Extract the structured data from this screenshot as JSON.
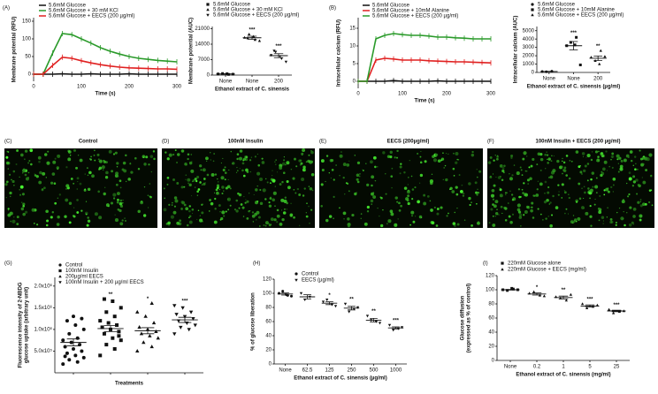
{
  "chart_data": [
    {
      "type": "line",
      "panel_label": "(A)",
      "ylabel": "Membrane potential (RFU)",
      "xlabel": "Time (s)",
      "x": [
        0,
        20,
        40,
        60,
        80,
        100,
        120,
        140,
        160,
        180,
        200,
        220,
        240,
        260,
        280,
        300
      ],
      "xlim": [
        0,
        300
      ],
      "xticks": [
        0,
        100,
        200,
        300
      ],
      "ylim": [
        -20,
        160
      ],
      "yticks": [
        0,
        50,
        100,
        150
      ],
      "series": [
        {
          "name": "5.6mM Glucose",
          "color": "#111111",
          "values": [
            0,
            0,
            0,
            1,
            0,
            0,
            1,
            0,
            0,
            0,
            1,
            0,
            0,
            0,
            0,
            0
          ]
        },
        {
          "name": "5.6mM Glucose + 30 mM KCl",
          "color": "#2a9a2a",
          "values": [
            0,
            0,
            60,
            115,
            112,
            100,
            88,
            75,
            65,
            57,
            50,
            45,
            42,
            39,
            37,
            35
          ]
        },
        {
          "name": "5.6mM Glucose + EECS (200  µg/ml)",
          "color": "#e02020",
          "values": [
            0,
            0,
            25,
            48,
            45,
            38,
            32,
            27,
            23,
            20,
            18,
            17,
            16,
            15,
            15,
            14
          ]
        }
      ]
    },
    {
      "type": "scatter",
      "ylabel": "Membrane potential (AUC)",
      "xlabel": "Ethanol extract of C. sinensis",
      "categories": [
        "None",
        "None",
        "200"
      ],
      "ylim": [
        0,
        22000
      ],
      "yticks": [
        0,
        7000,
        14000,
        21000
      ],
      "series": [
        {
          "name": "5.6mM Glucose",
          "marker": "square",
          "values": [
            [
              500,
              300,
              700,
              400,
              600
            ],
            null,
            null
          ],
          "means": [
            500,
            null,
            null
          ],
          "errors": [
            100,
            null,
            null
          ],
          "annotations": [
            null,
            null,
            null
          ]
        },
        {
          "name": "5.6mM Glucose + 30 mM KCl",
          "marker": "triangle",
          "values": [
            null,
            [
              17000,
              16000,
              18500,
              15500,
              17500,
              16800
            ],
            null
          ],
          "means": [
            null,
            16900,
            null
          ],
          "errors": [
            null,
            700,
            null
          ],
          "annotations": [
            null,
            "***",
            null
          ]
        },
        {
          "name": "5.6mM Glucose + EECS (200 µg/ml)",
          "marker": "triangle-down",
          "values": [
            null,
            null,
            [
              9000,
              7500,
              10500,
              6000,
              8500,
              11000
            ]
          ],
          "means": [
            null,
            null,
            8800
          ],
          "errors": [
            null,
            null,
            900
          ],
          "annotations": [
            null,
            null,
            "***"
          ]
        }
      ]
    },
    {
      "type": "line",
      "panel_label": "(B)",
      "ylabel": "Intracellular calcium (RFU)",
      "xlabel": "Time (s)",
      "x": [
        0,
        20,
        40,
        60,
        80,
        100,
        120,
        140,
        160,
        180,
        200,
        220,
        240,
        260,
        280,
        300
      ],
      "xlim": [
        0,
        300
      ],
      "xticks": [
        0,
        100,
        200,
        300
      ],
      "ylim": [
        -2,
        18
      ],
      "yticks": [
        0,
        5,
        10,
        15
      ],
      "series": [
        {
          "name": "5.6mM Glucose",
          "color": "#111111",
          "values": [
            0,
            0,
            0,
            0,
            0.2,
            0,
            0,
            0,
            0,
            0.1,
            0,
            0,
            0,
            0,
            0,
            0
          ]
        },
        {
          "name": "5.6mM Glucose + 10mM Alanine",
          "color": "#e02020",
          "values": [
            0,
            0,
            6,
            6.5,
            6.3,
            6,
            6,
            6,
            5.8,
            5.7,
            5.6,
            5.5,
            5.5,
            5.4,
            5.3,
            5.2
          ]
        },
        {
          "name": "5.6mM Glucose + EECS (200 µg/ml)",
          "color": "#2a9a2a",
          "values": [
            0,
            0,
            12,
            13,
            13.5,
            13.2,
            13,
            13,
            12.8,
            12.5,
            12.5,
            12.3,
            12.2,
            12,
            12,
            12
          ]
        }
      ]
    },
    {
      "type": "scatter",
      "ylabel": "Intracellular calcium (AUC)",
      "xlabel": "Ethanol extract of C. sinensis (µg/ml)",
      "categories": [
        "None",
        "None",
        "200"
      ],
      "ylim": [
        0,
        5500
      ],
      "yticks": [
        0,
        1000,
        2000,
        3000,
        4000,
        5000
      ],
      "series": [
        {
          "name": "5.6mM Glucose",
          "marker": "circle",
          "values": [
            [
              100,
              150,
              80
            ],
            null,
            null
          ],
          "means": [
            110,
            null,
            null
          ],
          "errors": [
            20,
            null,
            null
          ],
          "annotations": [
            null,
            null,
            null
          ]
        },
        {
          "name": "5.6mM Glucose + 10mM Alanine",
          "marker": "square",
          "values": [
            null,
            [
              3200,
              4200,
              3600,
              900,
              3300
            ],
            null
          ],
          "means": [
            null,
            3200,
            null
          ],
          "errors": [
            null,
            500,
            null
          ],
          "annotations": [
            null,
            "***",
            null
          ]
        },
        {
          "name": "5.6mM Glucose + EECS (200 µg/ml)",
          "marker": "triangle",
          "values": [
            null,
            null,
            [
              1800,
              2600,
              1400,
              1900,
              1000
            ]
          ],
          "means": [
            null,
            null,
            1700
          ],
          "errors": [
            null,
            null,
            270
          ],
          "annotations": [
            null,
            null,
            "**"
          ]
        }
      ]
    },
    {
      "type": "scatter",
      "panel_label": "(G)",
      "ylabel": [
        "Fluorescence intensity of 2-NBDG",
        "glucose uptake (arbitrary unit)"
      ],
      "xlabel": "Treatments",
      "categories": [
        null,
        null,
        null,
        null
      ],
      "ylim": [
        0,
        2200000
      ],
      "yticks": [
        {
          "value": 500000,
          "label": "5.0x10⁵"
        },
        {
          "value": 1000000,
          "label": "1.0x10⁶"
        },
        {
          "value": 1500000,
          "label": "1.5x10⁶"
        },
        {
          "value": 2000000,
          "label": "2.0x10⁶"
        }
      ],
      "series": [
        {
          "name": "Control",
          "marker": "circle",
          "values": [
            [
              200000,
              250000,
              300000,
              350000,
              400000,
              450000,
              500000,
              550000,
              600000,
              650000,
              700000,
              750000,
              800000,
              900000,
              1000000,
              1100000,
              1200000,
              1250000,
              1300000,
              380000
            ],
            null,
            null,
            null
          ],
          "means": [
            700000,
            null,
            null,
            null
          ],
          "errors": [
            80000,
            null,
            null,
            null
          ],
          "annotations": [
            null,
            null,
            null,
            null
          ]
        },
        {
          "name": "100nM Insulin",
          "marker": "square",
          "values": [
            null,
            [
              400000,
              550000,
              650000,
              750000,
              800000,
              900000,
              950000,
              1000000,
              1050000,
              1100000,
              1150000,
              1200000,
              1300000,
              1400000,
              1500000,
              1650000,
              1700000,
              850000
            ],
            null,
            null
          ],
          "means": [
            null,
            1020000,
            null,
            null
          ],
          "errors": [
            null,
            70000,
            null,
            null
          ],
          "annotations": [
            null,
            "**",
            null,
            null
          ]
        },
        {
          "name": "200µg/ml EECS",
          "marker": "triangle",
          "values": [
            null,
            null,
            [
              500000,
              600000,
              700000,
              800000,
              850000,
              900000,
              950000,
              1000000,
              1050000,
              1150000,
              1300000,
              1400000,
              1600000
            ],
            null
          ],
          "means": [
            null,
            null,
            970000,
            null
          ],
          "errors": [
            null,
            null,
            70000,
            null
          ],
          "annotations": [
            null,
            null,
            "*",
            null
          ]
        },
        {
          "name": "100nM Insulin + 200 µg/ml EECS",
          "marker": "triangle-down",
          "values": [
            null,
            null,
            null,
            [
              900000,
              1000000,
              1050000,
              1100000,
              1150000,
              1200000,
              1250000,
              1300000,
              1350000,
              1400000,
              1500000,
              1550000
            ]
          ],
          "means": [
            null,
            null,
            null,
            1220000
          ],
          "errors": [
            null,
            null,
            null,
            60000
          ],
          "annotations": [
            null,
            null,
            null,
            "***"
          ]
        }
      ]
    },
    {
      "type": "scatter",
      "panel_label": "(H)",
      "ylabel": "% of glucose liberation",
      "xlabel": "Ethanol extract of C. sinensis (µg/ml)",
      "categories": [
        "None",
        "62.5",
        "125",
        "250",
        "500",
        "1000"
      ],
      "ylim": [
        0,
        120
      ],
      "yticks": [
        0,
        20,
        40,
        60,
        80,
        100,
        120
      ],
      "series": [
        {
          "name": "Control",
          "marker": "circle",
          "values": [
            [
              100,
              97,
              103,
              96,
              98
            ],
            null,
            null,
            null,
            null,
            null
          ],
          "means": [
            99,
            null,
            null,
            null,
            null,
            null
          ],
          "errors": [
            1.5,
            null,
            null,
            null,
            null,
            null
          ],
          "annotations": [
            null,
            null,
            null,
            null,
            null,
            null
          ]
        },
        {
          "name": "EECS (µg/ml)",
          "marker": "triangle-down",
          "values": [
            null,
            [
              100,
              95,
              91
            ],
            [
              88,
              84,
              91,
              82
            ],
            [
              85,
              78,
              74,
              80
            ],
            [
              68,
              60,
              62,
              58
            ],
            [
              55,
              50,
              48,
              52
            ]
          ],
          "means": [
            null,
            95,
            86,
            79,
            62,
            51
          ],
          "errors": [
            null,
            3,
            2,
            2.5,
            2.5,
            1.5
          ],
          "annotations": [
            null,
            null,
            "*",
            "**",
            "**",
            "***"
          ]
        }
      ]
    },
    {
      "type": "scatter",
      "panel_label": "(I)",
      "ylabel": [
        "Glucose diffusion",
        "(expressed as % of control)"
      ],
      "xlabel": "Ethanol extract of C. sinensis (mg/ml)",
      "categories": [
        "None",
        "0.2",
        "1",
        "5",
        "25"
      ],
      "ylim": [
        0,
        120
      ],
      "yticks": [
        0,
        20,
        40,
        60,
        80,
        100,
        120
      ],
      "series": [
        {
          "name": "220mM Glucose alone",
          "marker": "square",
          "values": [
            [
              100,
              101,
              99,
              100,
              102
            ],
            null,
            null,
            null,
            null
          ],
          "means": [
            100,
            null,
            null,
            null,
            null
          ],
          "errors": [
            0.5,
            null,
            null,
            null,
            null
          ],
          "annotations": [
            null,
            null,
            null,
            null,
            null
          ]
        },
        {
          "name": "220mM Glucose + EECS (mg/ml)",
          "marker": "triangle",
          "values": [
            null,
            [
              95,
              92,
              97,
              91
            ],
            [
              90,
              85,
              88,
              93
            ],
            [
              80,
              76,
              74,
              78
            ],
            [
              72,
              69,
              67,
              70
            ]
          ],
          "means": [
            null,
            94,
            89,
            77,
            70
          ],
          "errors": [
            null,
            1.5,
            2,
            1.5,
            1
          ],
          "annotations": [
            null,
            "*",
            "**",
            "***",
            "***"
          ]
        }
      ]
    }
  ],
  "images": [
    {
      "panel": "(C)",
      "label": "Control"
    },
    {
      "panel": "(D)",
      "label": "100nM Insulin"
    },
    {
      "panel": "(E)",
      "label": "EECS (200µg/ml)"
    },
    {
      "panel": "(F)",
      "label": "100nM Insulin + EECS (200 µg/ml)"
    }
  ]
}
